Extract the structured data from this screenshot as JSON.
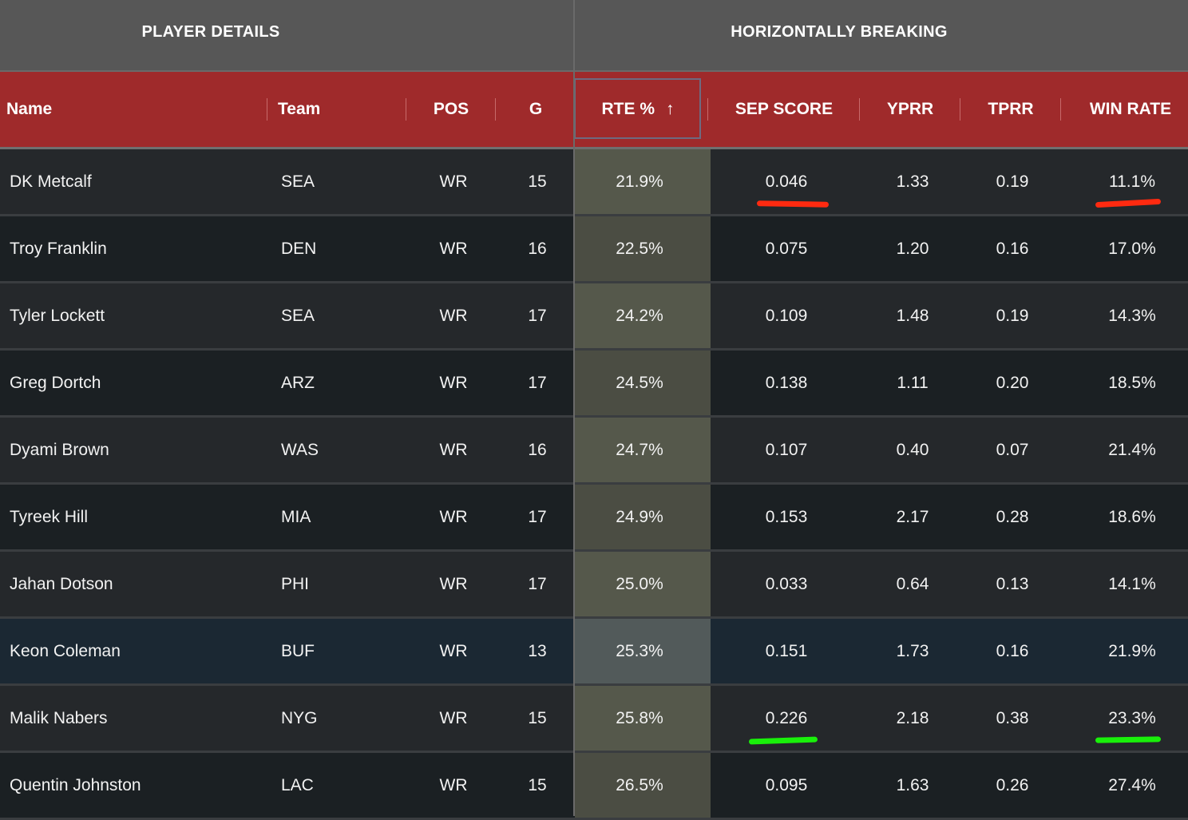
{
  "groups": {
    "player_details": "PLAYER DETAILS",
    "horizontally_breaking": "HORIZONTALLY BREAKING"
  },
  "columns": {
    "name": "Name",
    "team": "Team",
    "pos": "POS",
    "g": "G",
    "rte": "RTE %",
    "rte_sort_icon": "arrow-up-icon",
    "sep": "SEP SCORE",
    "yprr": "YPRR",
    "tprr": "TPRR",
    "win": "WIN RATE"
  },
  "rows": [
    {
      "name": "DK Metcalf",
      "team": "SEA",
      "pos": "WR",
      "g": "15",
      "rte": "21.9%",
      "sep": "0.046",
      "yprr": "1.33",
      "tprr": "0.19",
      "win": "11.1%"
    },
    {
      "name": "Troy Franklin",
      "team": "DEN",
      "pos": "WR",
      "g": "16",
      "rte": "22.5%",
      "sep": "0.075",
      "yprr": "1.20",
      "tprr": "0.16",
      "win": "17.0%"
    },
    {
      "name": "Tyler Lockett",
      "team": "SEA",
      "pos": "WR",
      "g": "17",
      "rte": "24.2%",
      "sep": "0.109",
      "yprr": "1.48",
      "tprr": "0.19",
      "win": "14.3%"
    },
    {
      "name": "Greg Dortch",
      "team": "ARZ",
      "pos": "WR",
      "g": "17",
      "rte": "24.5%",
      "sep": "0.138",
      "yprr": "1.11",
      "tprr": "0.20",
      "win": "18.5%"
    },
    {
      "name": "Dyami Brown",
      "team": "WAS",
      "pos": "WR",
      "g": "16",
      "rte": "24.7%",
      "sep": "0.107",
      "yprr": "0.40",
      "tprr": "0.07",
      "win": "21.4%"
    },
    {
      "name": "Tyreek Hill",
      "team": "MIA",
      "pos": "WR",
      "g": "17",
      "rte": "24.9%",
      "sep": "0.153",
      "yprr": "2.17",
      "tprr": "0.28",
      "win": "18.6%"
    },
    {
      "name": "Jahan Dotson",
      "team": "PHI",
      "pos": "WR",
      "g": "17",
      "rte": "25.0%",
      "sep": "0.033",
      "yprr": "0.64",
      "tprr": "0.13",
      "win": "14.1%"
    },
    {
      "name": "Keon Coleman",
      "team": "BUF",
      "pos": "WR",
      "g": "13",
      "rte": "25.3%",
      "sep": "0.151",
      "yprr": "1.73",
      "tprr": "0.16",
      "win": "21.9%"
    },
    {
      "name": "Malik Nabers",
      "team": "NYG",
      "pos": "WR",
      "g": "15",
      "rte": "25.8%",
      "sep": "0.226",
      "yprr": "2.18",
      "tprr": "0.38",
      "win": "23.3%"
    },
    {
      "name": "Quentin Johnston",
      "team": "LAC",
      "pos": "WR",
      "g": "15",
      "rte": "26.5%",
      "sep": "0.095",
      "yprr": "1.63",
      "tprr": "0.26",
      "win": "27.4%"
    }
  ],
  "annotation_colors": {
    "red": "#ff2a10",
    "green": "#19f00a"
  }
}
